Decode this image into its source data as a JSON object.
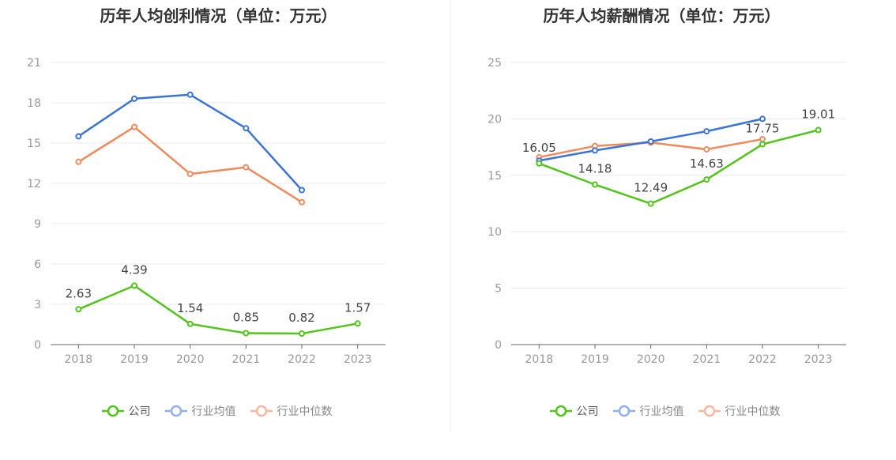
{
  "colors": {
    "company": "#52c41a",
    "industry_avg": "#3b74d6",
    "industry_median": "#f08a5d",
    "legend_avg": "#8fb0e8",
    "legend_median": "#f6b9a0",
    "grid": "#e6e8ee",
    "axis": "#666666",
    "tick_text": "#999999",
    "label_text": "#444444"
  },
  "legend": {
    "company": "公司",
    "industry_avg": "行业均值",
    "industry_median": "行业中位数"
  },
  "chart_data": [
    {
      "type": "line",
      "title": "历年人均创利情况（单位：万元）",
      "categories": [
        "2018",
        "2019",
        "2020",
        "2021",
        "2022",
        "2023"
      ],
      "yticks": [
        0,
        3,
        6,
        9,
        12,
        15,
        18,
        21
      ],
      "ylim": [
        0,
        21
      ],
      "grid": true,
      "legend_position": "bottom",
      "series": [
        {
          "name": "公司",
          "key": "company",
          "values": [
            2.63,
            4.39,
            1.54,
            0.85,
            0.82,
            1.57
          ],
          "labels": [
            "2.63",
            "4.39",
            "1.54",
            "0.85",
            "0.82",
            "1.57"
          ]
        },
        {
          "name": "行业均值",
          "key": "industry_avg",
          "values": [
            15.5,
            18.3,
            18.6,
            16.1,
            11.5,
            null
          ]
        },
        {
          "name": "行业中位数",
          "key": "industry_median",
          "values": [
            13.6,
            16.2,
            12.7,
            13.2,
            10.6,
            null
          ]
        }
      ]
    },
    {
      "type": "line",
      "title": "历年人均薪酬情况（单位：万元）",
      "categories": [
        "2018",
        "2019",
        "2020",
        "2021",
        "2022",
        "2023"
      ],
      "yticks": [
        0,
        5,
        10,
        15,
        20,
        25
      ],
      "ylim": [
        0,
        25
      ],
      "grid": true,
      "legend_position": "bottom",
      "series": [
        {
          "name": "公司",
          "key": "company",
          "values": [
            16.05,
            14.18,
            12.49,
            14.63,
            17.75,
            19.01
          ],
          "labels": [
            "16.05",
            "14.18",
            "12.49",
            "14.63",
            "17.75",
            "19.01"
          ]
        },
        {
          "name": "行业均值",
          "key": "industry_avg",
          "values": [
            16.3,
            17.2,
            18.0,
            18.9,
            20.0,
            null
          ]
        },
        {
          "name": "行业中位数",
          "key": "industry_median",
          "values": [
            16.6,
            17.6,
            17.9,
            17.3,
            18.2,
            null
          ]
        }
      ]
    }
  ]
}
